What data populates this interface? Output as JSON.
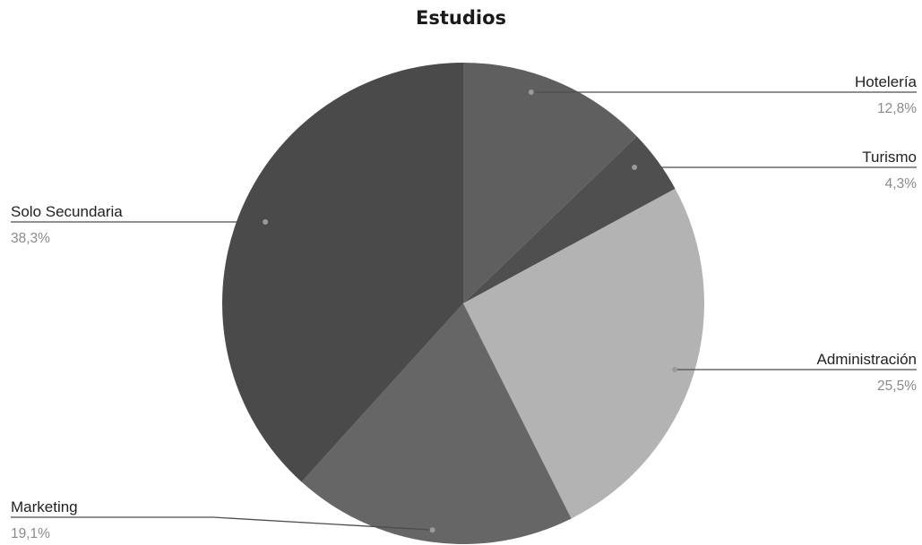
{
  "chart_data": {
    "type": "pie",
    "title": "Estudios",
    "categories": [
      "Hotelería",
      "Turismo",
      "Administración",
      "Marketing",
      "Solo Secundaria"
    ],
    "values": [
      12.8,
      4.3,
      25.5,
      19.1,
      38.3
    ],
    "labels": [
      "12,8%",
      "4,3%",
      "25,5%",
      "19,1%",
      "38,3%"
    ],
    "colors": [
      "#5f5f5f",
      "#4f4f4f",
      "#b3b3b3",
      "#666666",
      "#4a4a4a"
    ],
    "start_angle": "12 o'clock",
    "direction": "clockwise",
    "legend": "none"
  }
}
